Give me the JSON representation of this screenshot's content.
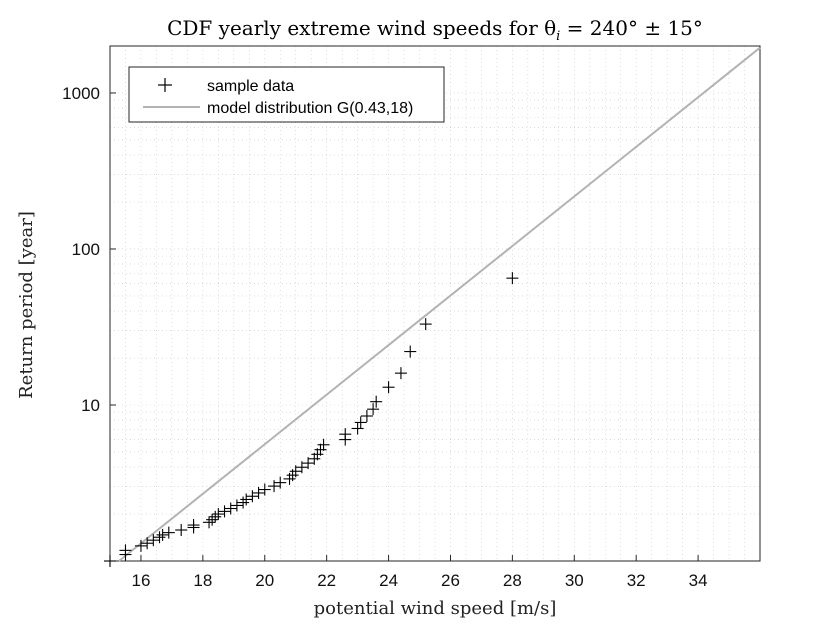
{
  "chart_data": {
    "type": "scatter",
    "title": "CDF yearly extreme wind speeds for θ",
    "title_subscript": "i",
    "title_suffix": " = 240° ± 15°",
    "xlabel": "potential wind speed [m/s]",
    "ylabel": "Return period [year]",
    "xlim": [
      15,
      36
    ],
    "ylim": [
      1,
      2000
    ],
    "yscale": "log",
    "grid": true,
    "minor_grid": true,
    "x_ticks": [
      16,
      18,
      20,
      22,
      24,
      26,
      28,
      30,
      32,
      34
    ],
    "x_tick_labels": [
      "16",
      "18",
      "20",
      "22",
      "24",
      "26",
      "28",
      "30",
      "32",
      "34"
    ],
    "y_ticks": [
      10,
      100,
      1000
    ],
    "y_tick_labels": [
      "10",
      "100",
      "1000"
    ],
    "legend": {
      "placement": "top-left",
      "entries": [
        "sample data",
        "model distribution G(0.43,18)"
      ]
    },
    "colors": {
      "sample": "#000000",
      "model": "#b3b3b3",
      "grid": "#c8c8c8"
    },
    "series": [
      {
        "name": "sample data",
        "marker": "+",
        "x": [
          15.0,
          15.5,
          15.5,
          16.0,
          16.2,
          16.4,
          16.6,
          16.7,
          16.9,
          17.3,
          17.7,
          17.7,
          18.2,
          18.3,
          18.4,
          18.5,
          18.7,
          18.9,
          19.1,
          19.3,
          19.4,
          19.6,
          19.8,
          20.0,
          20.3,
          20.5,
          20.8,
          20.9,
          21.0,
          21.2,
          21.4,
          21.6,
          21.7,
          21.8,
          21.9,
          22.6,
          22.6,
          23.0,
          23.1,
          23.3,
          23.5,
          23.6,
          24.0,
          24.4,
          24.7,
          25.2,
          28.0
        ],
        "y": [
          1.0,
          1.1,
          1.17,
          1.25,
          1.3,
          1.36,
          1.42,
          1.47,
          1.52,
          1.58,
          1.64,
          1.7,
          1.77,
          1.84,
          1.92,
          2.0,
          2.08,
          2.17,
          2.27,
          2.37,
          2.48,
          2.6,
          2.73,
          2.87,
          3.02,
          3.18,
          3.36,
          3.55,
          3.76,
          3.99,
          4.24,
          4.52,
          4.83,
          5.17,
          5.56,
          6.0,
          6.5,
          7.07,
          7.73,
          8.5,
          9.4,
          10.5,
          13.0,
          16.0,
          22.0,
          33.0,
          65.0
        ]
      },
      {
        "name": "model distribution G(0.43,18)",
        "line": true,
        "x": [
          15.0,
          36.0
        ],
        "y": [
          0.9,
          1950
        ]
      }
    ]
  }
}
